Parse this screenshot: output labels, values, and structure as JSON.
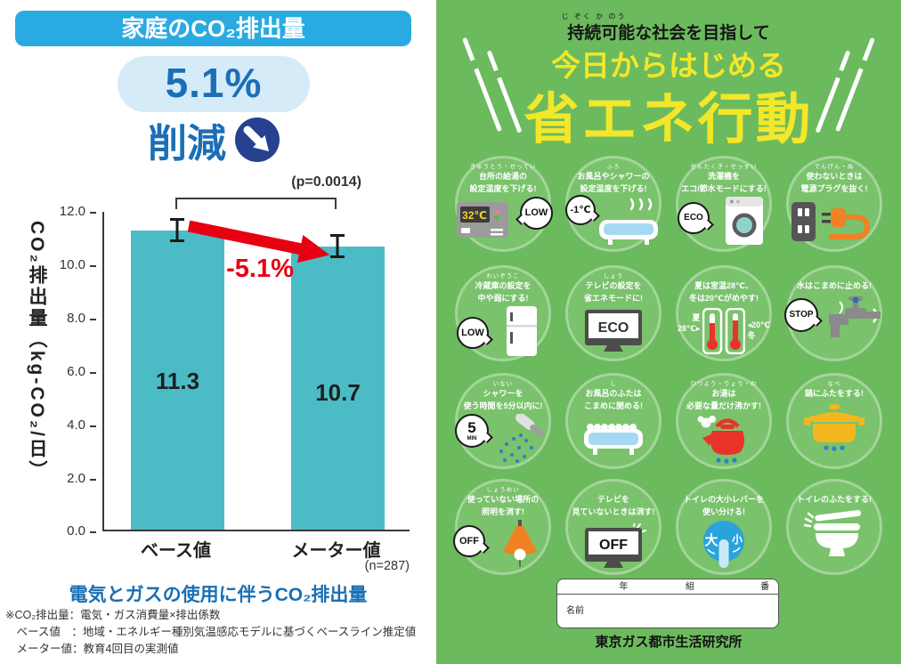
{
  "left_panel": {
    "badge": "家庭のCO₂排出量",
    "reduction_percent": "5.1%",
    "reduction_word": "削減",
    "p_value": "(p=0.0014)",
    "arrow_label": "-5.1%",
    "n_value": "(n=287)",
    "chart_title": "電気とガスの使用に伴うCO₂排出量",
    "footnote1": "※CO₂排出量：電気・ガス消費量×排出係数",
    "footnote2": "　ベース値　：地域・エネルギー種別気温感応モデルに基づくベースライン推定値",
    "footnote3": "　メーター値：教育4回目の実測値"
  },
  "chart_data": {
    "type": "bar",
    "title": "電気とガスの使用に伴うCO₂排出量",
    "categories": [
      "ベース値",
      "メーター値"
    ],
    "values": [
      11.3,
      10.7
    ],
    "errors": [
      0.45,
      0.45
    ],
    "ylabel": "CO₂排出量（kg-CO₂/日）",
    "xlabel": "",
    "ylim": [
      0,
      12
    ],
    "yticks": [
      "12.0",
      "10.0",
      "8.0",
      "6.0",
      "4.0",
      "2.0",
      "0.0"
    ],
    "grid": false,
    "annotations": {
      "change": "-5.1%",
      "p_value": "(p=0.0014)",
      "sample_size": "(n=287)"
    },
    "bar_color": "#4BBCC6"
  },
  "poster": {
    "furigana_top": "じ ぞく か のう",
    "subtitle": "持続可能な社会を目指して",
    "title_line1": "今日からはじめる",
    "title_line2": "省エネ行動",
    "cells": [
      {
        "furigana": "きゅうとう・せってい",
        "line1": "台所の給湯の",
        "line2": "設定温度を下げる!",
        "bubble": "LOW",
        "display": "32℃"
      },
      {
        "furigana": "ふろ",
        "line1": "お風呂やシャワーの",
        "line2": "設定温度を下げる!",
        "bubble": "-1℃"
      },
      {
        "furigana": "せんたくき・せっすい",
        "line1": "洗濯機を",
        "line2": "エコ/節水モードにする!",
        "bubble": "ECO"
      },
      {
        "furigana": "でんげん・ぬ",
        "line1": "使わないときは",
        "line2": "電源プラグを抜く!"
      },
      {
        "furigana": "れいぞうこ",
        "line1": "冷蔵庫の設定を",
        "line2": "中や弱にする!",
        "bubble": "LOW"
      },
      {
        "furigana": "しょう",
        "line1": "テレビの設定を",
        "line2": "省エネモードに!",
        "screen": "ECO"
      },
      {
        "furigana": "",
        "line1": "夏は室温28℃、",
        "line2": "冬は20℃がめやす!",
        "summer": "夏",
        "summer_temp": "28℃▸",
        "winter": "冬",
        "winter_temp": "◂20℃"
      },
      {
        "furigana": "",
        "line1": "水はこまめに止める!",
        "line2": "",
        "bubble": "STOP"
      },
      {
        "furigana": "いない",
        "line1": "シャワーを",
        "line2": "使う時間を5分以内に!",
        "bubble": "5",
        "bubble_sub": "MIN"
      },
      {
        "furigana": "し",
        "line1": "お風呂のふたは",
        "line2": "こまめに閉める!"
      },
      {
        "furigana": "ひつよう・りょう・わ",
        "line1": "お湯は",
        "line2": "必要な量だけ沸かす!"
      },
      {
        "furigana": "なべ",
        "line1": "鍋にふたをする!",
        "line2": ""
      },
      {
        "furigana": "しょうめい",
        "line1": "使っていない場所の",
        "line2": "照明を消す!",
        "bubble": "OFF"
      },
      {
        "furigana": "",
        "line1": "テレビを",
        "line2": "見ていないときは消す!",
        "screen": "OFF"
      },
      {
        "furigana": "",
        "line1": "トイレの大小レバーを",
        "line2": "使い分ける!",
        "big": "大",
        "small": "小"
      },
      {
        "furigana": "",
        "line1": "トイレのふたをする!",
        "line2": ""
      }
    ],
    "name_box": {
      "year": "年",
      "group": "組",
      "number": "番",
      "name": "名前"
    },
    "credit": "東京ガス都市生活研究所"
  },
  "colors": {
    "background_green": "#6CBA5E",
    "circle_green": "#7AC26C",
    "title_yellow": "#F3E72A",
    "badge_blue": "#29ABE2",
    "accent_blue": "#1B6FB6",
    "pill_blue": "#D6EBF8",
    "navy_circle": "#26418F",
    "bar_teal": "#4BBCC6",
    "arrow_red": "#E60012"
  }
}
